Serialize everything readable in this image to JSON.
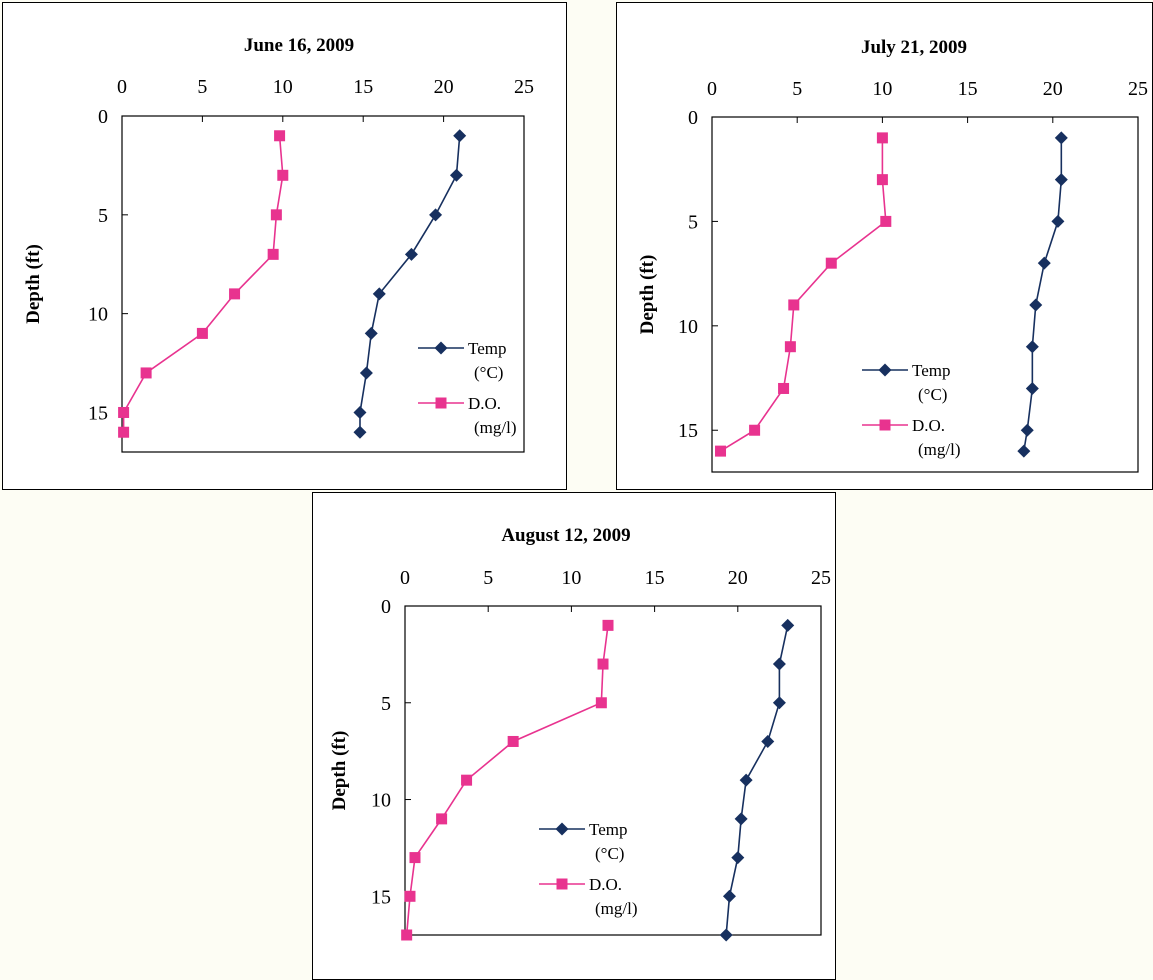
{
  "chart_data": [
    {
      "type": "line",
      "title": "June 16, 2009",
      "xlabel": "",
      "ylabel": "Depth (ft)",
      "xlim": [
        0,
        25
      ],
      "ylim": [
        0,
        17
      ],
      "y_inverted": true,
      "x_axis_position": "top",
      "xticks": [
        "0",
        "5",
        "10",
        "15",
        "20",
        "25"
      ],
      "yticks": [
        "0",
        "5",
        "10",
        "15"
      ],
      "legend_position": "right",
      "series": [
        {
          "name": "Temp (°C)",
          "legend_lines": [
            "Temp",
            "(°C)"
          ],
          "marker": "diamond",
          "color": "#17305f",
          "points": [
            [
              21.0,
              1
            ],
            [
              20.8,
              3
            ],
            [
              19.5,
              5
            ],
            [
              18.0,
              7
            ],
            [
              16.0,
              9
            ],
            [
              15.5,
              11
            ],
            [
              15.2,
              13
            ],
            [
              14.8,
              15
            ],
            [
              14.8,
              16
            ]
          ]
        },
        {
          "name": "D.O. (mg/l)",
          "legend_lines": [
            "D.O.",
            "(mg/l)"
          ],
          "marker": "square",
          "color": "#e8338f",
          "points": [
            [
              9.8,
              1
            ],
            [
              10.0,
              3
            ],
            [
              9.6,
              5
            ],
            [
              9.4,
              7
            ],
            [
              7.0,
              9
            ],
            [
              5.0,
              11
            ],
            [
              1.5,
              13
            ],
            [
              0.1,
              15
            ],
            [
              0.1,
              16
            ]
          ]
        }
      ]
    },
    {
      "type": "line",
      "title": "July 21, 2009",
      "xlabel": "",
      "ylabel": "Depth (ft)",
      "xlim": [
        0,
        25
      ],
      "ylim": [
        0,
        17
      ],
      "y_inverted": true,
      "x_axis_position": "top",
      "xticks": [
        "0",
        "5",
        "10",
        "15",
        "20",
        "25"
      ],
      "yticks": [
        "0",
        "5",
        "10",
        "15"
      ],
      "legend_position": "right",
      "series": [
        {
          "name": "Temp (°C)",
          "legend_lines": [
            "Temp",
            "(°C)"
          ],
          "marker": "diamond",
          "color": "#17305f",
          "points": [
            [
              20.5,
              1
            ],
            [
              20.5,
              3
            ],
            [
              20.3,
              5
            ],
            [
              19.5,
              7
            ],
            [
              19.0,
              9
            ],
            [
              18.8,
              11
            ],
            [
              18.8,
              13
            ],
            [
              18.5,
              15
            ],
            [
              18.3,
              16
            ]
          ]
        },
        {
          "name": "D.O. (mg/l)",
          "legend_lines": [
            "D.O.",
            "(mg/l)"
          ],
          "marker": "square",
          "color": "#e8338f",
          "points": [
            [
              10.0,
              1
            ],
            [
              10.0,
              3
            ],
            [
              10.2,
              5
            ],
            [
              7.0,
              7
            ],
            [
              4.8,
              9
            ],
            [
              4.6,
              11
            ],
            [
              4.2,
              13
            ],
            [
              2.5,
              15
            ],
            [
              0.5,
              16
            ]
          ]
        }
      ]
    },
    {
      "type": "line",
      "title": "August 12, 2009",
      "xlabel": "",
      "ylabel": "Depth (ft)",
      "xlim": [
        0,
        25
      ],
      "ylim": [
        0,
        17
      ],
      "y_inverted": true,
      "x_axis_position": "top",
      "xticks": [
        "0",
        "5",
        "10",
        "15",
        "20",
        "25"
      ],
      "yticks": [
        "0",
        "5",
        "10",
        "15"
      ],
      "legend_position": "center",
      "series": [
        {
          "name": "Temp (°C)",
          "legend_lines": [
            "Temp",
            "(°C)"
          ],
          "marker": "diamond",
          "color": "#17305f",
          "points": [
            [
              23.0,
              1
            ],
            [
              22.5,
              3
            ],
            [
              22.5,
              5
            ],
            [
              21.8,
              7
            ],
            [
              20.5,
              9
            ],
            [
              20.2,
              11
            ],
            [
              20.0,
              13
            ],
            [
              19.5,
              15
            ],
            [
              19.3,
              17
            ]
          ]
        },
        {
          "name": "D.O. (mg/l)",
          "legend_lines": [
            "D.O.",
            "(mg/l)"
          ],
          "marker": "square",
          "color": "#e8338f",
          "points": [
            [
              12.2,
              1
            ],
            [
              11.9,
              3
            ],
            [
              11.8,
              5
            ],
            [
              6.5,
              7
            ],
            [
              3.7,
              9
            ],
            [
              2.2,
              11
            ],
            [
              0.6,
              13
            ],
            [
              0.3,
              15
            ],
            [
              0.1,
              17
            ]
          ]
        }
      ]
    }
  ]
}
